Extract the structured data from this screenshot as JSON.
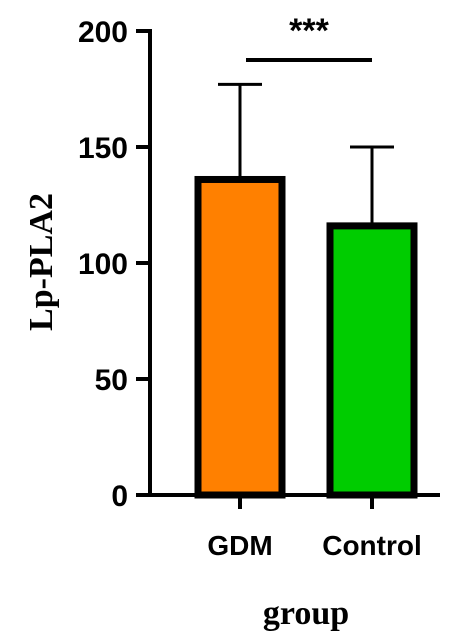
{
  "chart_data": {
    "type": "bar",
    "categories": [
      "GDM",
      "Control"
    ],
    "values": [
      136,
      116
    ],
    "error_upper": [
      177,
      150
    ],
    "colors": [
      "#ff8000",
      "#00cc00"
    ],
    "xlabel": "group",
    "ylabel": "Lp-PLA2",
    "ylim": [
      0,
      200
    ],
    "yticks": [
      0,
      50,
      100,
      150,
      200
    ],
    "significance": {
      "label": "***",
      "between": [
        "GDM",
        "Control"
      ]
    },
    "grid": false,
    "legend": "none"
  }
}
